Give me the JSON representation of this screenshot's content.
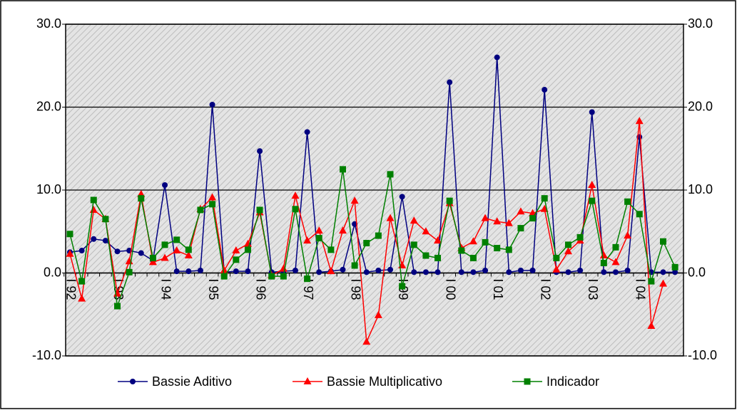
{
  "chart_data": {
    "type": "line",
    "categories": [
      "I 92",
      null,
      null,
      null,
      "I 93",
      null,
      null,
      null,
      "I 94",
      null,
      null,
      null,
      "I 95",
      null,
      null,
      null,
      "I 96",
      null,
      null,
      null,
      "I 97",
      null,
      null,
      null,
      "I 98",
      null,
      null,
      null,
      "I 99",
      null,
      null,
      null,
      "I 00",
      null,
      null,
      null,
      "I 01",
      null,
      null,
      null,
      "I 02",
      null,
      null,
      null,
      "I 03",
      null,
      null,
      null,
      "I 04",
      null,
      null,
      null
    ],
    "series": [
      {
        "name": "Bassie Aditivo",
        "color": "#000080",
        "marker": "circle",
        "values": [
          2.5,
          2.7,
          4.1,
          3.9,
          2.6,
          2.7,
          2.4,
          1.5,
          10.6,
          0.2,
          0.2,
          0.3,
          20.3,
          0.1,
          0.2,
          0.2,
          14.7,
          0.1,
          0.2,
          0.3,
          17.0,
          0.1,
          0.2,
          0.4,
          5.9,
          0.1,
          0.3,
          0.4,
          9.2,
          0.1,
          0.1,
          0.1,
          23.0,
          0.1,
          0.1,
          0.3,
          26.0,
          0.1,
          0.3,
          0.3,
          22.1,
          0.1,
          0.1,
          0.3,
          19.4,
          0.1,
          0.1,
          0.3,
          16.4,
          0.1,
          0.1,
          0.1
        ]
      },
      {
        "name": "Bassie Multiplicativo",
        "color": "#ff0000",
        "marker": "triangle",
        "values": [
          2.3,
          -3.1,
          7.6,
          6.5,
          -2.5,
          1.4,
          9.5,
          1.3,
          1.8,
          2.7,
          2.1,
          7.7,
          9.1,
          0.3,
          2.7,
          3.5,
          7.3,
          -0.3,
          0.5,
          9.3,
          3.9,
          5.1,
          0.2,
          5.1,
          8.7,
          -8.3,
          -5.1,
          6.6,
          0.9,
          6.3,
          5.0,
          3.9,
          8.4,
          3.0,
          3.8,
          6.6,
          6.2,
          6.0,
          7.4,
          7.2,
          7.7,
          0.4,
          2.6,
          3.9,
          10.6,
          2.1,
          1.3,
          4.5,
          18.3,
          -6.4,
          -1.3,
          null
        ]
      },
      {
        "name": "Indicador",
        "color": "#008000",
        "marker": "square",
        "values": [
          4.7,
          -1.0,
          8.8,
          6.5,
          -4.0,
          0.1,
          9.0,
          1.8,
          3.4,
          4.0,
          2.8,
          7.6,
          8.3,
          -0.4,
          1.6,
          2.8,
          7.6,
          -0.4,
          -0.4,
          7.7,
          -0.7,
          4.2,
          2.8,
          12.5,
          0.9,
          3.6,
          4.5,
          11.9,
          -1.6,
          3.4,
          2.1,
          1.8,
          8.7,
          2.7,
          1.8,
          3.7,
          3.0,
          2.8,
          5.4,
          6.6,
          9.0,
          1.8,
          3.4,
          4.3,
          8.7,
          1.2,
          3.1,
          8.6,
          7.1,
          -1.0,
          3.8,
          0.7
        ]
      }
    ],
    "ylim": [
      -10,
      30
    ],
    "yticks": [
      {
        "value": -10,
        "label": "-10.0"
      },
      {
        "value": 0,
        "label": "0.0"
      },
      {
        "value": 10,
        "label": "10.0"
      },
      {
        "value": 20,
        "label": "20.0"
      },
      {
        "value": 30,
        "label": "30.0"
      }
    ],
    "y2lim": [
      -10,
      30
    ],
    "y2ticks": [
      {
        "value": -10,
        "label": "-10.0"
      },
      {
        "value": 0,
        "label": "0.0"
      },
      {
        "value": 10,
        "label": "10.0"
      },
      {
        "value": 20,
        "label": "20.0"
      },
      {
        "value": 30,
        "label": "30.0"
      }
    ],
    "grid": true,
    "legend": "bottom"
  }
}
